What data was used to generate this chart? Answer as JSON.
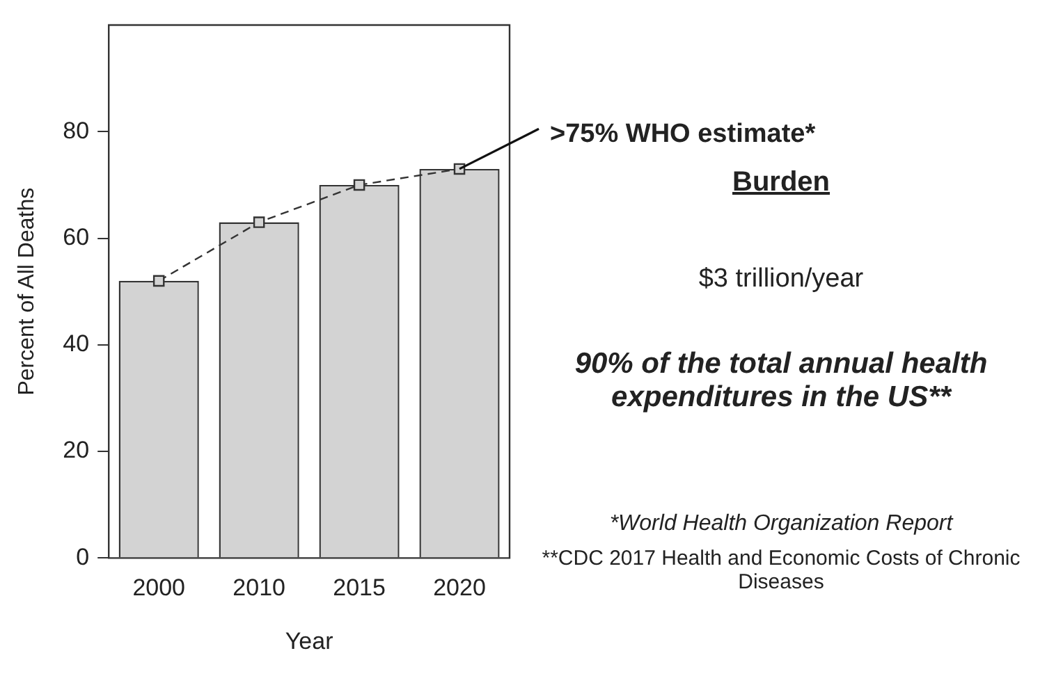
{
  "chart_data": {
    "type": "bar",
    "categories": [
      "2000",
      "2010",
      "2015",
      "2020"
    ],
    "series": [
      {
        "color": "#d3d3d3",
        "values": [
          52,
          63,
          70,
          73
        ]
      },
      {
        "type": "line",
        "color": "#333333",
        "values": [
          52,
          63,
          70,
          73
        ],
        "marker": "square",
        "line_style": "dashed"
      }
    ],
    "ylim": [
      0,
      100
    ],
    "yticks": [
      0,
      20,
      40,
      60,
      80
    ],
    "xlabel": "Year",
    "ylabel": "Percent of All Deaths",
    "grid": false,
    "legend": false,
    "annotations": [
      {
        "text": ">75% WHO estimate*",
        "x": "2020",
        "y": 73
      },
      "Burden",
      "$3 trillion/year",
      "90% of the total annual health expenditures in the US**",
      "*World Health Organization Report",
      "**CDC 2017 Health and Economic Costs of Chronic Diseases"
    ]
  }
}
